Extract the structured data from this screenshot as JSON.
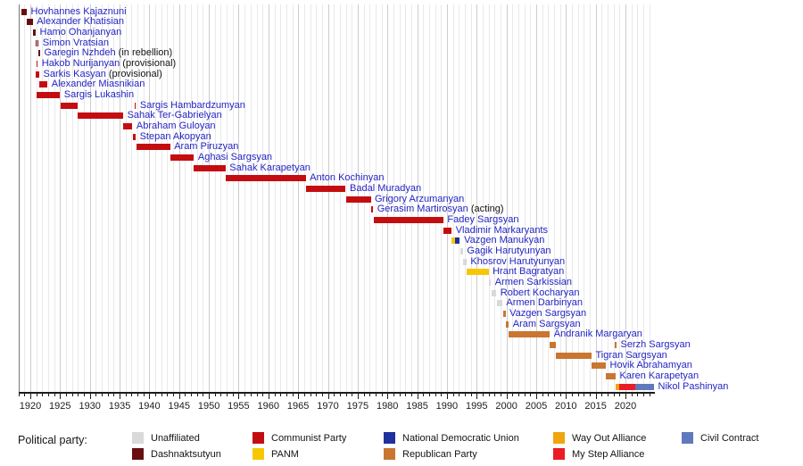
{
  "chart_data": {
    "type": "timeline",
    "description": "Timeline of heads of government of Armenia colored by political party",
    "x_axis": {
      "year_min": 1918,
      "year_max": 2025,
      "minor_tick_every": 1,
      "major_tick_every": 5,
      "label_years": [
        1920,
        1925,
        1930,
        1935,
        1940,
        1945,
        1950,
        1955,
        1960,
        1965,
        1970,
        1975,
        1980,
        1985,
        1990,
        1995,
        2000,
        2005,
        2010,
        2015,
        2020
      ]
    },
    "parties": {
      "unaffiliated": {
        "name": "Unaffiliated",
        "color": "#d9d9d9"
      },
      "dashnaktsutyun": {
        "name": "Dashnaktsutyun",
        "color": "#670f0f"
      },
      "communist": {
        "name": "Communist Party",
        "color": "#c40d10"
      },
      "panm": {
        "name": "PANM",
        "color": "#f8c704"
      },
      "ndu": {
        "name": "National Democratic Union",
        "color": "#20309e"
      },
      "republican": {
        "name": "Republican Party",
        "color": "#c97632"
      },
      "way_out": {
        "name": "Way Out Alliance",
        "color": "#efa50e"
      },
      "my_step": {
        "name": "My Step Alliance",
        "color": "#ea1c24"
      },
      "civil_contract": {
        "name": "Civil Contract",
        "color": "#5f7abc"
      }
    },
    "people": [
      {
        "name": "Hovhannes Kajaznuni",
        "note": "",
        "terms": [
          {
            "party": "dashnaktsutyun",
            "start": 1918.5,
            "end": 1919.4
          }
        ]
      },
      {
        "name": "Alexander Khatisian",
        "note": "",
        "terms": [
          {
            "party": "dashnaktsutyun",
            "start": 1919.4,
            "end": 1920.4
          }
        ]
      },
      {
        "name": "Hamo Ohanjanyan",
        "note": "",
        "terms": [
          {
            "party": "dashnaktsutyun",
            "start": 1920.4,
            "end": 1920.9
          }
        ]
      },
      {
        "name": "Simon Vratsian",
        "note": "",
        "terms": [
          {
            "party": "dashnaktsutyun",
            "start": 1920.9,
            "end": 1921.05
          },
          {
            "party": "dashnaktsutyun",
            "start": 1921.2,
            "end": 1921.4
          }
        ]
      },
      {
        "name": "Garegin Nzhdeh",
        "note": "(in rebellion)",
        "terms": [
          {
            "party": "dashnaktsutyun",
            "start": 1921.4,
            "end": 1921.65
          }
        ]
      },
      {
        "name": "Hakob Nurijanyan",
        "note": "(provisional)",
        "terms": [
          {
            "party": "communist",
            "start": 1921.05,
            "end": 1921.25
          }
        ]
      },
      {
        "name": "Sarkis Kasyan",
        "note": "(provisional)",
        "terms": [
          {
            "party": "communist",
            "start": 1920.95,
            "end": 1921.5
          }
        ]
      },
      {
        "name": "Alexander Miasnikian",
        "note": "",
        "terms": [
          {
            "party": "communist",
            "start": 1921.5,
            "end": 1922.9
          }
        ]
      },
      {
        "name": "Sargis Lukashin",
        "note": "",
        "terms": [
          {
            "party": "communist",
            "start": 1921.1,
            "end": 1925.0
          }
        ]
      },
      {
        "name": "Sargis Hambardzumyan",
        "note": "",
        "terms": [
          {
            "party": "communist",
            "start": 1925.1,
            "end": 1928.0
          },
          {
            "party": "communist",
            "start": 1937.5,
            "end": 1937.75
          }
        ]
      },
      {
        "name": "Sahak Ter-Gabrielyan",
        "note": "",
        "terms": [
          {
            "party": "communist",
            "start": 1928.0,
            "end": 1935.6
          }
        ]
      },
      {
        "name": "Abraham Guloyan",
        "note": "",
        "terms": [
          {
            "party": "communist",
            "start": 1935.6,
            "end": 1937.15
          }
        ]
      },
      {
        "name": "Stepan Akopyan",
        "note": "",
        "terms": [
          {
            "party": "communist",
            "start": 1937.2,
            "end": 1937.7
          }
        ]
      },
      {
        "name": "Aram Piruzyan",
        "note": "",
        "terms": [
          {
            "party": "communist",
            "start": 1937.8,
            "end": 1943.5
          }
        ]
      },
      {
        "name": "Aghasi Sargsyan",
        "note": "",
        "terms": [
          {
            "party": "communist",
            "start": 1943.5,
            "end": 1947.5
          }
        ]
      },
      {
        "name": "Sahak Karapetyan",
        "note": "",
        "terms": [
          {
            "party": "communist",
            "start": 1947.5,
            "end": 1952.8
          }
        ]
      },
      {
        "name": "Anton Kochinyan",
        "note": "",
        "terms": [
          {
            "party": "communist",
            "start": 1952.8,
            "end": 1966.3
          }
        ]
      },
      {
        "name": "Badal Muradyan",
        "note": "",
        "terms": [
          {
            "party": "communist",
            "start": 1966.3,
            "end": 1973.0
          }
        ]
      },
      {
        "name": "Grigory Arzumanyan",
        "note": "",
        "terms": [
          {
            "party": "communist",
            "start": 1973.0,
            "end": 1977.2
          }
        ]
      },
      {
        "name": "Gerasim Martirosyan",
        "note": "(acting)",
        "terms": [
          {
            "party": "communist",
            "start": 1977.25,
            "end": 1977.6
          }
        ]
      },
      {
        "name": "Fadey Sargsyan",
        "note": "",
        "terms": [
          {
            "party": "communist",
            "start": 1977.65,
            "end": 1989.4
          }
        ]
      },
      {
        "name": "Vladimir Markaryants",
        "note": "",
        "terms": [
          {
            "party": "communist",
            "start": 1989.4,
            "end": 1990.8
          }
        ]
      },
      {
        "name": "Vazgen Manukyan",
        "note": "",
        "terms": [
          {
            "party": "panm",
            "start": 1990.8,
            "end": 1991.4
          },
          {
            "party": "ndu",
            "start": 1991.4,
            "end": 1992.2
          }
        ]
      },
      {
        "name": "Gagik Harutyunyan",
        "note": "",
        "terms": [
          {
            "party": "unaffiliated",
            "start": 1992.2,
            "end": 1992.7
          }
        ]
      },
      {
        "name": "Khosrov Harutyunyan",
        "note": "",
        "terms": [
          {
            "party": "unaffiliated",
            "start": 1992.75,
            "end": 1993.3
          }
        ]
      },
      {
        "name": "Hrant Bagratyan",
        "note": "",
        "terms": [
          {
            "party": "panm",
            "start": 1993.3,
            "end": 1997.0
          }
        ]
      },
      {
        "name": "Armen Sarkissian",
        "note": "",
        "terms": [
          {
            "party": "unaffiliated",
            "start": 1997.0,
            "end": 1997.4
          }
        ]
      },
      {
        "name": "Robert Kocharyan",
        "note": "",
        "terms": [
          {
            "party": "unaffiliated",
            "start": 1997.45,
            "end": 1998.3
          }
        ]
      },
      {
        "name": "Armen Darbinyan",
        "note": "",
        "terms": [
          {
            "party": "unaffiliated",
            "start": 1998.35,
            "end": 1999.3
          }
        ]
      },
      {
        "name": "Vazgen Sargsyan",
        "note": "",
        "terms": [
          {
            "party": "republican",
            "start": 1999.4,
            "end": 1999.85
          }
        ]
      },
      {
        "name": "Aram Sargsyan",
        "note": "",
        "terms": [
          {
            "party": "republican",
            "start": 1999.9,
            "end": 2000.4
          }
        ]
      },
      {
        "name": "Andranik Margaryan",
        "note": "",
        "terms": [
          {
            "party": "republican",
            "start": 2000.4,
            "end": 2007.3
          }
        ]
      },
      {
        "name": "Serzh Sargsyan",
        "note": "",
        "terms": [
          {
            "party": "republican",
            "start": 2007.3,
            "end": 2008.3
          },
          {
            "party": "republican",
            "start": 2018.25,
            "end": 2018.5
          }
        ]
      },
      {
        "name": "Tigran Sargsyan",
        "note": "",
        "terms": [
          {
            "party": "republican",
            "start": 2008.3,
            "end": 2014.3
          }
        ]
      },
      {
        "name": "Hovik Abrahamyan",
        "note": "",
        "terms": [
          {
            "party": "republican",
            "start": 2014.3,
            "end": 2016.7
          }
        ]
      },
      {
        "name": "Karen Karapetyan",
        "note": "",
        "terms": [
          {
            "party": "republican",
            "start": 2016.7,
            "end": 2018.35
          }
        ]
      },
      {
        "name": "Nikol Pashinyan",
        "note": "",
        "terms": [
          {
            "party": "way_out",
            "start": 2018.4,
            "end": 2019.0
          },
          {
            "party": "my_step",
            "start": 2019.0,
            "end": 2021.6
          },
          {
            "party": "civil_contract",
            "start": 2021.6,
            "end": 2024.8
          }
        ]
      }
    ]
  },
  "legend": {
    "title": "Political party:",
    "rows": [
      [
        "unaffiliated",
        "communist",
        "ndu",
        "way_out",
        "civil_contract"
      ],
      [
        "dashnaktsutyun",
        "panm",
        "republican",
        "my_step"
      ]
    ]
  },
  "colors": {
    "link_text": "#2424c4",
    "note_text": "#141414",
    "axis_text": "#1c1c1c",
    "grid_minor": "#e9e9e9",
    "grid_major": "#cccccc",
    "grid_origin": "#777777",
    "axis_line": "#1c1c1c",
    "background": "#ffffff"
  }
}
